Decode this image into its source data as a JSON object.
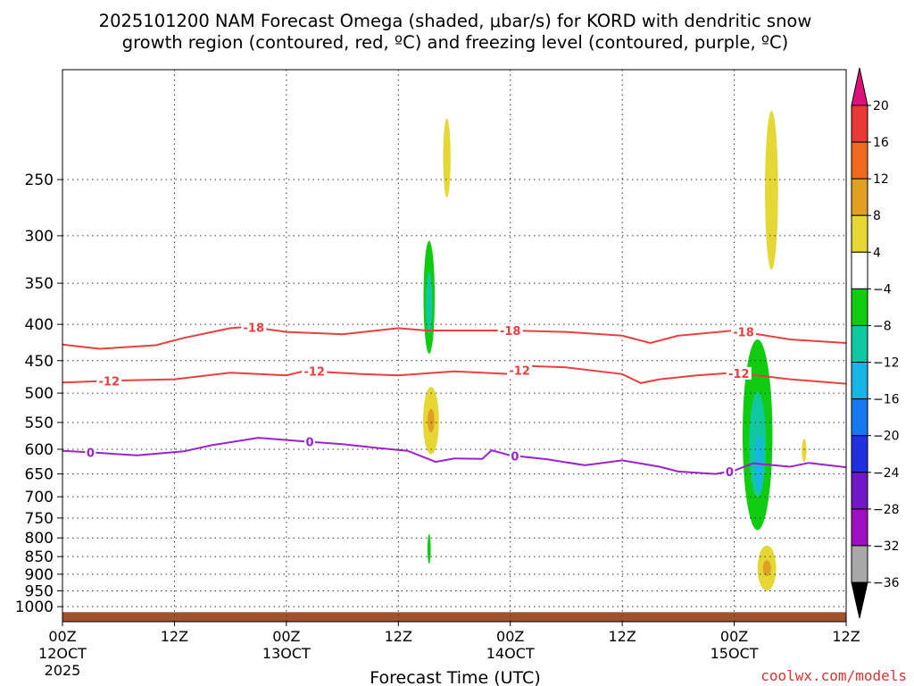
{
  "chart_data": {
    "type": "heatmap",
    "title_line1": "2025101200 NAM Forecast Omega (shaded, μbar/s) for KORD with dendritic snow",
    "title_line2": "growth region (contoured, red, ºC) and freezing level (contoured, purple, ºC)",
    "xlabel": "Forecast Time (UTC)",
    "credit": "coolwx.com/models",
    "x_range_hours": [
      0,
      84
    ],
    "x_ticks": [
      {
        "hour": 0,
        "label": "00Z",
        "sub": "12OCT",
        "sub2": "2025"
      },
      {
        "hour": 12,
        "label": "12Z"
      },
      {
        "hour": 24,
        "label": "00Z",
        "sub": "13OCT"
      },
      {
        "hour": 36,
        "label": "12Z"
      },
      {
        "hour": 48,
        "label": "00Z",
        "sub": "14OCT"
      },
      {
        "hour": 60,
        "label": "12Z"
      },
      {
        "hour": 72,
        "label": "00Z",
        "sub": "15OCT"
      },
      {
        "hour": 84,
        "label": "12Z"
      }
    ],
    "y_range_hPa": [
      1050,
      175
    ],
    "y_ticks": [
      250,
      300,
      350,
      400,
      450,
      500,
      550,
      600,
      650,
      700,
      750,
      800,
      850,
      900,
      950,
      1000
    ],
    "colorbar_labels": [
      "20",
      "16",
      "12",
      "8",
      "4",
      "−4",
      "−8",
      "−12",
      "−16",
      "−20",
      "−24",
      "−28",
      "−32",
      "−36"
    ],
    "colorbar_colors": [
      "#e0107a",
      "#e83838",
      "#f06a1e",
      "#e0a022",
      "#e6d834",
      "#ffffff",
      "#10cc10",
      "#10c8a0",
      "#18b4e6",
      "#1878f0",
      "#2030e0",
      "#7018c8",
      "#a010c0",
      "#a8a8a8",
      "#000000"
    ],
    "dgz_contours": [
      {
        "label": "-18",
        "color": "#e84040",
        "points": [
          [
            0,
            427
          ],
          [
            4,
            433
          ],
          [
            10,
            428
          ],
          [
            13,
            418
          ],
          [
            18,
            405
          ],
          [
            20,
            403
          ],
          [
            24,
            410
          ],
          [
            30,
            413
          ],
          [
            36,
            405
          ],
          [
            39,
            408
          ],
          [
            48,
            408
          ],
          [
            54,
            410
          ],
          [
            60,
            415
          ],
          [
            63,
            425
          ],
          [
            66,
            415
          ],
          [
            72,
            408
          ],
          [
            78,
            420
          ],
          [
            84,
            425
          ]
        ],
        "labels_at": [
          20.5,
          48,
          73
        ]
      },
      {
        "label": "-12",
        "color": "#e84040",
        "points": [
          [
            0,
            483
          ],
          [
            6,
            480
          ],
          [
            12,
            478
          ],
          [
            18,
            468
          ],
          [
            24,
            472
          ],
          [
            26,
            465
          ],
          [
            32,
            470
          ],
          [
            36,
            472
          ],
          [
            42,
            466
          ],
          [
            48,
            470
          ],
          [
            50,
            458
          ],
          [
            54,
            460
          ],
          [
            60,
            470
          ],
          [
            62,
            484
          ],
          [
            64,
            478
          ],
          [
            68,
            472
          ],
          [
            72,
            468
          ],
          [
            78,
            478
          ],
          [
            84,
            485
          ]
        ],
        "labels_at": [
          5,
          27,
          49,
          72.5
        ]
      }
    ],
    "freezing_contours": [
      {
        "label": "0",
        "color": "#9c22cc",
        "points": [
          [
            0,
            603
          ],
          [
            3,
            606
          ],
          [
            8,
            612
          ],
          [
            13,
            604
          ],
          [
            16,
            592
          ],
          [
            21,
            578
          ],
          [
            26,
            585
          ],
          [
            30,
            590
          ],
          [
            34,
            598
          ],
          [
            37,
            603
          ],
          [
            40,
            625
          ],
          [
            42,
            618
          ],
          [
            45,
            619
          ],
          [
            46,
            602
          ],
          [
            48,
            612
          ],
          [
            52,
            620
          ],
          [
            56,
            632
          ],
          [
            60,
            622
          ],
          [
            64,
            635
          ],
          [
            66,
            645
          ],
          [
            70,
            650
          ],
          [
            72,
            643
          ],
          [
            74,
            628
          ],
          [
            78,
            635
          ],
          [
            80,
            627
          ],
          [
            84,
            636
          ]
        ],
        "labels_at": [
          3,
          26.5,
          48.5,
          71.5
        ]
      }
    ],
    "omega_features": [
      {
        "kind": "upward",
        "color": "#10cc10",
        "hour": 39.3,
        "top": 305,
        "bottom": 440,
        "width_h": 1.2
      },
      {
        "kind": "upward",
        "color": "#10cc10",
        "hour": 39.3,
        "top": 790,
        "bottom": 870,
        "width_h": 0.35
      },
      {
        "kind": "upward",
        "color": "#10cc10",
        "hour": 74.5,
        "top": 420,
        "bottom": 780,
        "width_h": 3.2
      },
      {
        "kind": "downward",
        "color": "#e6d834",
        "hour": 41.2,
        "top": 205,
        "bottom": 265,
        "width_h": 0.8
      },
      {
        "kind": "downward",
        "color": "#e6d834",
        "hour": 39.5,
        "top": 490,
        "bottom": 610,
        "width_h": 1.7
      },
      {
        "kind": "downward",
        "color": "#e6d834",
        "hour": 76.0,
        "top": 200,
        "bottom": 335,
        "width_h": 1.4
      },
      {
        "kind": "downward",
        "color": "#e6d834",
        "hour": 79.5,
        "top": 580,
        "bottom": 625,
        "width_h": 0.5
      },
      {
        "kind": "downward",
        "color": "#e6d834",
        "hour": 75.5,
        "top": 820,
        "bottom": 950,
        "width_h": 2.0
      }
    ],
    "ground_color": "#a0522d"
  }
}
